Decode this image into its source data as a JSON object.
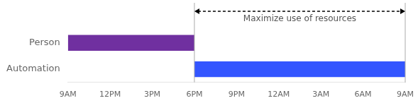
{
  "chart_data": {
    "type": "bar",
    "orientation": "horizontal",
    "categories": [
      "Person",
      "Automation"
    ],
    "values": [
      [
        0,
        9
      ],
      [
        9,
        24
      ]
    ],
    "colors": [
      "#7030A0",
      "#3355FF"
    ],
    "xlim": [
      0,
      24
    ],
    "xticks": [
      {
        "value": 0,
        "label": "9AM"
      },
      {
        "value": 3,
        "label": "12PM"
      },
      {
        "value": 6,
        "label": "3PM"
      },
      {
        "value": 9,
        "label": "6PM"
      },
      {
        "value": 12,
        "label": "9PM"
      },
      {
        "value": 15,
        "label": "12AM"
      },
      {
        "value": 18,
        "label": "3AM"
      },
      {
        "value": 21,
        "label": "6AM"
      },
      {
        "value": 24,
        "label": "9AM"
      }
    ],
    "vlines": [
      9,
      24
    ],
    "annotations": [
      {
        "text": "Maximize use of resources",
        "x": [
          9,
          24
        ]
      }
    ],
    "grid": false
  }
}
